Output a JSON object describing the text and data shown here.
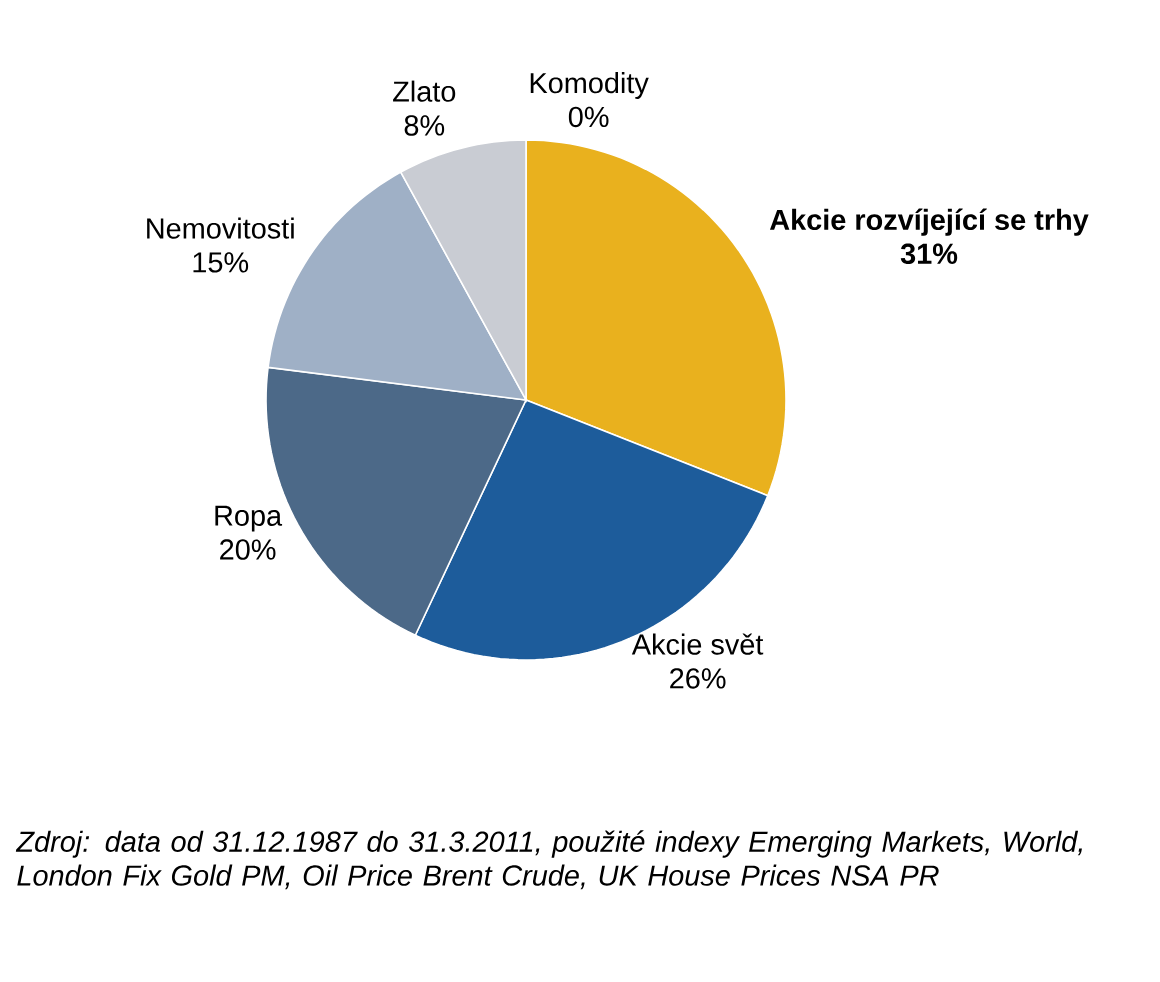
{
  "chart_data": {
    "type": "pie",
    "categories": [
      "Akcie rozvíjející se trhy",
      "Akcie svět",
      "Ropa",
      "Nemovitosti",
      "Zlato",
      "Komodity"
    ],
    "values": [
      31,
      26,
      20,
      15,
      8,
      0
    ],
    "colors": [
      "#e9b11e",
      "#1d5c9b",
      "#4c6988",
      "#9fb0c6",
      "#c9ccd3",
      "#b0b0b0"
    ],
    "value_labels": [
      "31%",
      "26%",
      "20%",
      "15%",
      "8%",
      "0%"
    ],
    "annotations": [
      "Zdroj: data od 31.12.1987 do 31.3.2011, použité indexy Emerging Markets, World, London Fix Gold PM, Oil Price Brent Crude, UK House Prices NSA PR"
    ]
  }
}
